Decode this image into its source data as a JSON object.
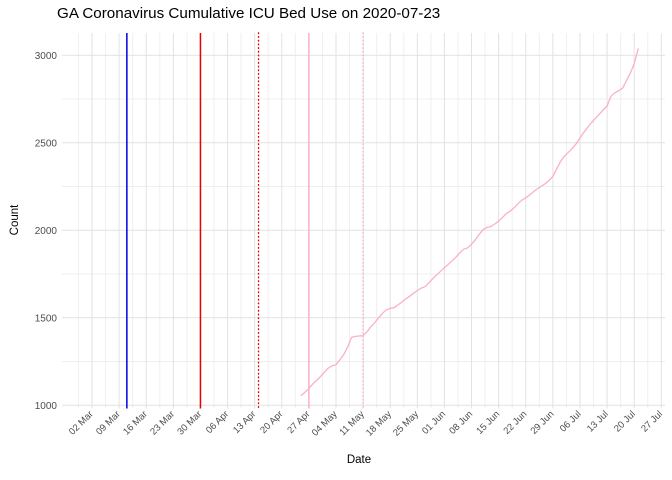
{
  "title": "GA Coronavirus Cumulative ICU Bed Use on 2020-07-23",
  "colors": {
    "background": "#ffffff",
    "grid_major": "#e2e2e2",
    "grid_minor": "#efefef",
    "tick_label": "#4d4d4d",
    "axis_title": "#000000",
    "title": "#000000",
    "series_pink": "#f9b1c3",
    "vline_blue": "#0000e0",
    "vline_red": "#e60000"
  },
  "chart_data": {
    "type": "line",
    "title": "GA Coronavirus Cumulative ICU Bed Use on 2020-07-23",
    "xlabel": "Date",
    "ylabel": "Count",
    "legend": "none",
    "grid": "major weekly + minor half-week vertical, major 500 + minor 250 horizontal, light gray on white",
    "ylim": [
      970,
      3130
    ],
    "xlim": [
      "2020-02-23",
      "2020-07-28"
    ],
    "y_ticks": [
      1000,
      1500,
      2000,
      2500,
      3000
    ],
    "x_ticks": [
      {
        "date": "2020-03-02",
        "label": "02 Mar"
      },
      {
        "date": "2020-03-09",
        "label": "09 Mar"
      },
      {
        "date": "2020-03-16",
        "label": "16 Mar"
      },
      {
        "date": "2020-03-23",
        "label": "23 Mar"
      },
      {
        "date": "2020-03-30",
        "label": "30 Mar"
      },
      {
        "date": "2020-04-06",
        "label": "06 Apr"
      },
      {
        "date": "2020-04-13",
        "label": "13 Apr"
      },
      {
        "date": "2020-04-20",
        "label": "20 Apr"
      },
      {
        "date": "2020-04-27",
        "label": "27 Apr"
      },
      {
        "date": "2020-05-04",
        "label": "04 May"
      },
      {
        "date": "2020-05-11",
        "label": "11 May"
      },
      {
        "date": "2020-05-18",
        "label": "18 May"
      },
      {
        "date": "2020-05-25",
        "label": "25 May"
      },
      {
        "date": "2020-06-01",
        "label": "01 Jun"
      },
      {
        "date": "2020-06-08",
        "label": "08 Jun"
      },
      {
        "date": "2020-06-15",
        "label": "15 Jun"
      },
      {
        "date": "2020-06-22",
        "label": "22 Jun"
      },
      {
        "date": "2020-06-29",
        "label": "29 Jun"
      },
      {
        "date": "2020-07-06",
        "label": "06 Jul"
      },
      {
        "date": "2020-07-13",
        "label": "13 Jul"
      },
      {
        "date": "2020-07-20",
        "label": "20 Jul"
      },
      {
        "date": "2020-07-27",
        "label": "27 Jul"
      }
    ],
    "vlines": [
      {
        "date": "2020-03-11",
        "style": "solid",
        "color": "#0000e0"
      },
      {
        "date": "2020-03-30",
        "style": "solid",
        "color": "#e60000"
      },
      {
        "date": "2020-04-14",
        "style": "dotted",
        "color": "#e60000"
      },
      {
        "date": "2020-04-27",
        "style": "solid",
        "color": "#f9b1c3"
      },
      {
        "date": "2020-05-11",
        "style": "dotted",
        "color": "#f9b1c3"
      }
    ],
    "series": [
      {
        "name": "cumulative-icu-bed-use",
        "color": "#f9b1c3",
        "points": [
          [
            "2020-04-25",
            1056
          ],
          [
            "2020-04-26",
            1075
          ],
          [
            "2020-04-27",
            1096
          ],
          [
            "2020-04-28",
            1122
          ],
          [
            "2020-04-29",
            1142
          ],
          [
            "2020-04-30",
            1164
          ],
          [
            "2020-05-01",
            1190
          ],
          [
            "2020-05-02",
            1212
          ],
          [
            "2020-05-03",
            1226
          ],
          [
            "2020-05-04",
            1232
          ],
          [
            "2020-05-05",
            1260
          ],
          [
            "2020-05-06",
            1290
          ],
          [
            "2020-05-07",
            1332
          ],
          [
            "2020-05-08",
            1388
          ],
          [
            "2020-05-09",
            1394
          ],
          [
            "2020-05-10",
            1396
          ],
          [
            "2020-05-11",
            1398
          ],
          [
            "2020-05-12",
            1420
          ],
          [
            "2020-05-13",
            1448
          ],
          [
            "2020-05-14",
            1472
          ],
          [
            "2020-05-15",
            1500
          ],
          [
            "2020-05-16",
            1526
          ],
          [
            "2020-05-17",
            1546
          ],
          [
            "2020-05-18",
            1554
          ],
          [
            "2020-05-19",
            1558
          ],
          [
            "2020-05-20",
            1574
          ],
          [
            "2020-05-21",
            1590
          ],
          [
            "2020-05-22",
            1608
          ],
          [
            "2020-05-23",
            1623
          ],
          [
            "2020-05-24",
            1640
          ],
          [
            "2020-05-25",
            1656
          ],
          [
            "2020-05-26",
            1670
          ],
          [
            "2020-05-27",
            1678
          ],
          [
            "2020-05-28",
            1700
          ],
          [
            "2020-05-29",
            1724
          ],
          [
            "2020-05-30",
            1746
          ],
          [
            "2020-05-31",
            1766
          ],
          [
            "2020-06-01",
            1786
          ],
          [
            "2020-06-02",
            1806
          ],
          [
            "2020-06-03",
            1826
          ],
          [
            "2020-06-04",
            1848
          ],
          [
            "2020-06-05",
            1872
          ],
          [
            "2020-06-06",
            1892
          ],
          [
            "2020-06-07",
            1900
          ],
          [
            "2020-06-08",
            1920
          ],
          [
            "2020-06-09",
            1946
          ],
          [
            "2020-06-10",
            1978
          ],
          [
            "2020-06-11",
            2004
          ],
          [
            "2020-06-12",
            2016
          ],
          [
            "2020-06-13",
            2022
          ],
          [
            "2020-06-14",
            2036
          ],
          [
            "2020-06-15",
            2052
          ],
          [
            "2020-06-16",
            2074
          ],
          [
            "2020-06-17",
            2096
          ],
          [
            "2020-06-18",
            2110
          ],
          [
            "2020-06-19",
            2128
          ],
          [
            "2020-06-20",
            2152
          ],
          [
            "2020-06-21",
            2172
          ],
          [
            "2020-06-22",
            2186
          ],
          [
            "2020-06-23",
            2202
          ],
          [
            "2020-06-24",
            2220
          ],
          [
            "2020-06-25",
            2238
          ],
          [
            "2020-06-26",
            2252
          ],
          [
            "2020-06-27",
            2266
          ],
          [
            "2020-06-28",
            2284
          ],
          [
            "2020-06-29",
            2308
          ],
          [
            "2020-06-30",
            2352
          ],
          [
            "2020-07-01",
            2394
          ],
          [
            "2020-07-02",
            2424
          ],
          [
            "2020-07-03",
            2446
          ],
          [
            "2020-07-04",
            2468
          ],
          [
            "2020-07-05",
            2494
          ],
          [
            "2020-07-06",
            2528
          ],
          [
            "2020-07-07",
            2560
          ],
          [
            "2020-07-08",
            2588
          ],
          [
            "2020-07-09",
            2616
          ],
          [
            "2020-07-10",
            2640
          ],
          [
            "2020-07-11",
            2664
          ],
          [
            "2020-07-12",
            2688
          ],
          [
            "2020-07-13",
            2710
          ],
          [
            "2020-07-14",
            2766
          ],
          [
            "2020-07-15",
            2786
          ],
          [
            "2020-07-16",
            2798
          ],
          [
            "2020-07-17",
            2812
          ],
          [
            "2020-07-18",
            2856
          ],
          [
            "2020-07-19",
            2898
          ],
          [
            "2020-07-20",
            2952
          ],
          [
            "2020-07-21",
            3036
          ]
        ]
      }
    ]
  }
}
